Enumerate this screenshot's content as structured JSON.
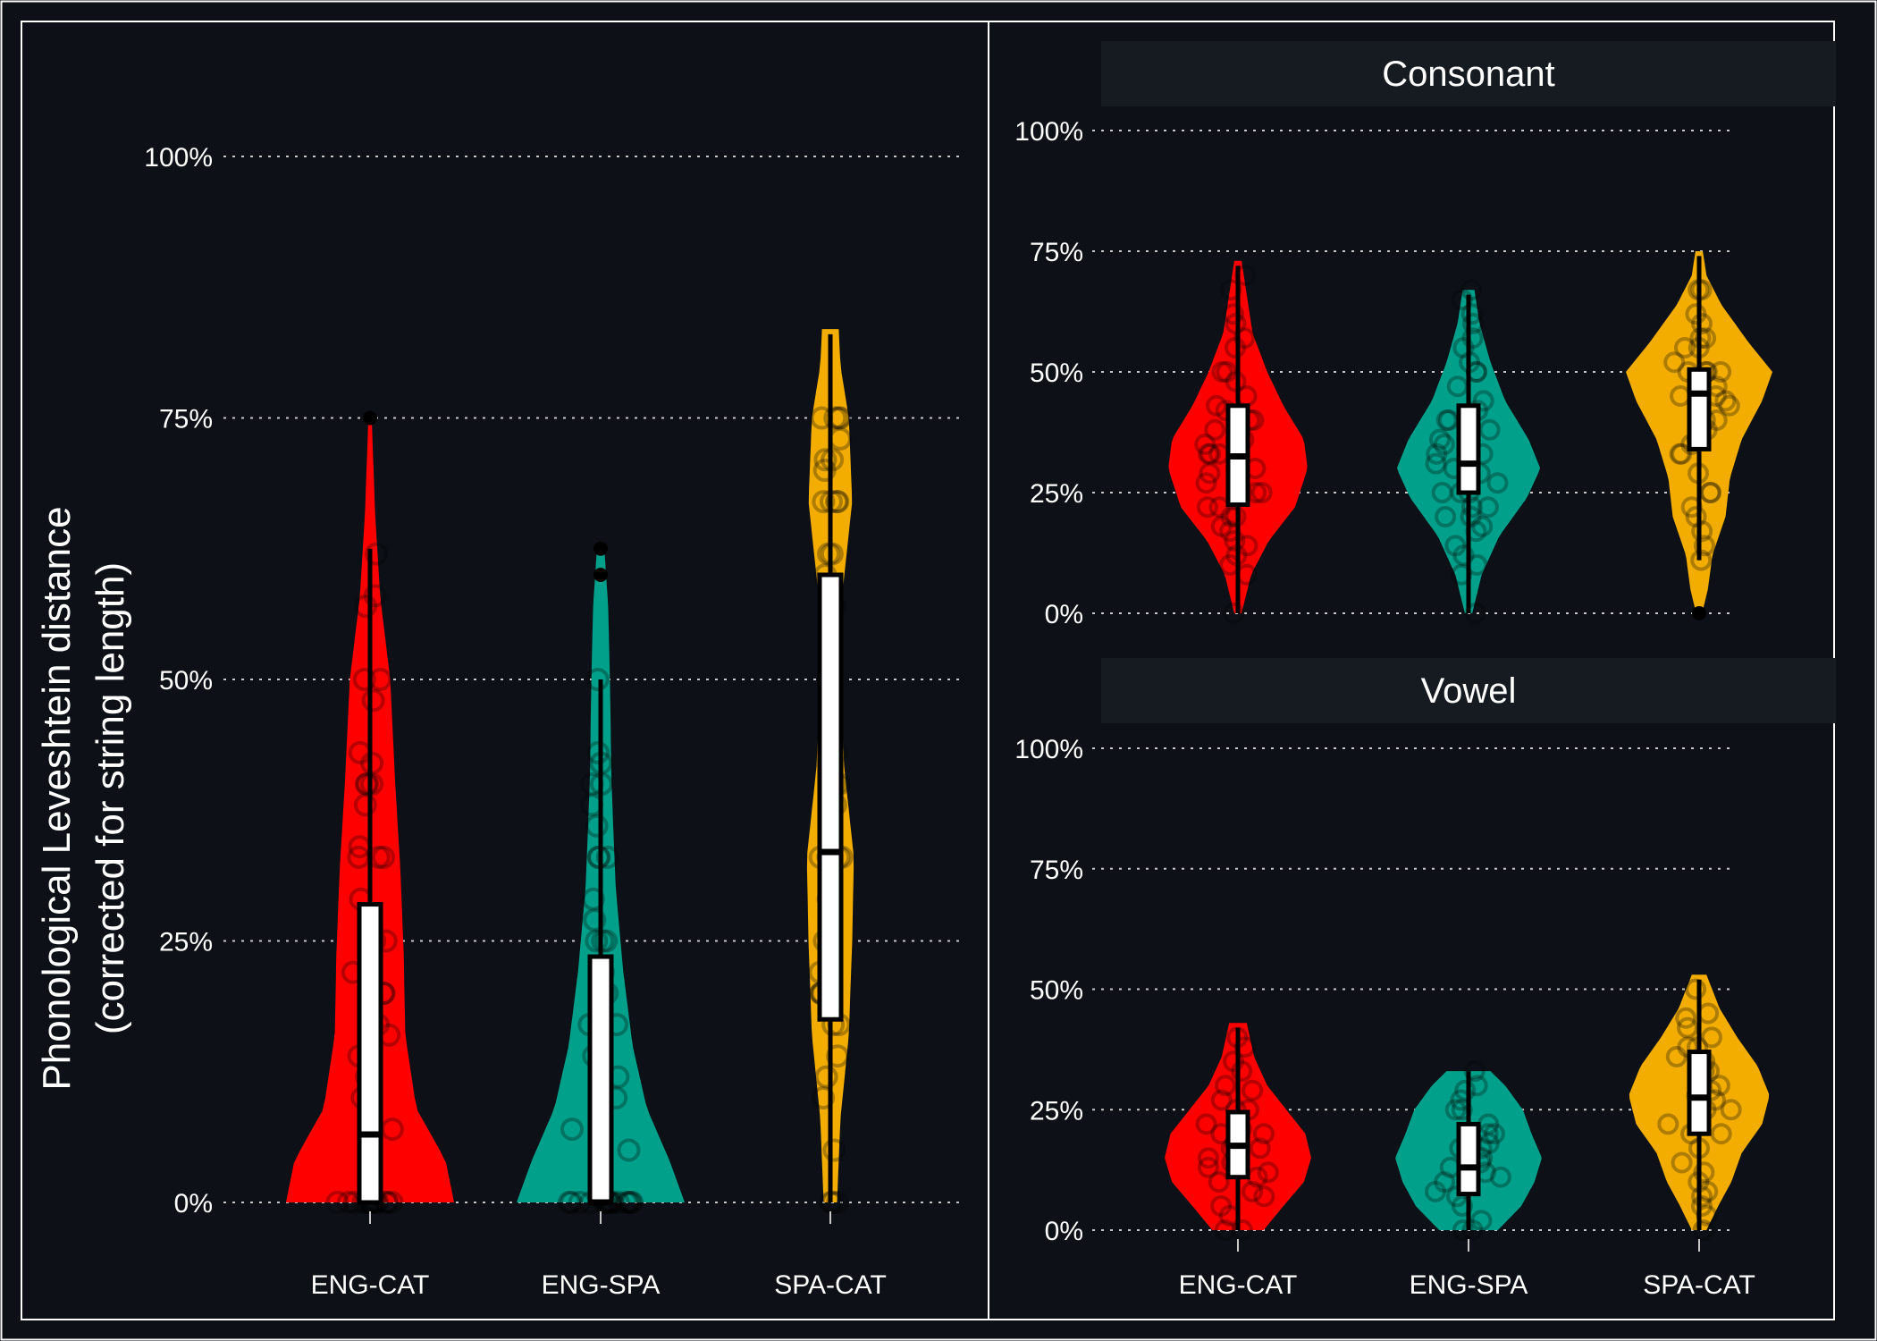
{
  "colors": {
    "background": "#0d1117",
    "panel_border": "#ffffff",
    "strip_fill": "#161b22",
    "grid": "#c8c8c8",
    "text": "#ffffff",
    "box_fill": "#ffffff",
    "box_stroke": "#000000"
  },
  "chart_data": [
    {
      "type": "violin",
      "panel": "left",
      "title": "",
      "ylabel_line1": "Phonological Leveshtein distance",
      "ylabel_line2": "(corrected for string length)",
      "ylim": [
        0,
        100
      ],
      "yticks": [
        0,
        25,
        50,
        75,
        100
      ],
      "ytick_labels": [
        "0%",
        "25%",
        "50%",
        "75%",
        "100%"
      ],
      "grid": true,
      "categories": [
        "ENG-CAT",
        "ENG-SPA",
        "SPA-CAT"
      ],
      "series": [
        {
          "category": "ENG-CAT",
          "color": "#ff0000",
          "violin_max": 75,
          "density_profile": [
            [
              0,
              1.0
            ],
            [
              4,
              0.9
            ],
            [
              9,
              0.55
            ],
            [
              16,
              0.42
            ],
            [
              24,
              0.4
            ],
            [
              32,
              0.36
            ],
            [
              40,
              0.3
            ],
            [
              50,
              0.24
            ],
            [
              58,
              0.12
            ],
            [
              66,
              0.06
            ],
            [
              75,
              0.02
            ]
          ],
          "box": {
            "q1": 0,
            "median": 6.5,
            "q3": 28.5,
            "whisker_low": 0,
            "whisker_high": 62.5
          },
          "outliers": [
            75
          ],
          "points": [
            0,
            0,
            0,
            0,
            0,
            0,
            0,
            0,
            0,
            0,
            0,
            0,
            0,
            0,
            7,
            10,
            12,
            14,
            16,
            17,
            20,
            20,
            22,
            25,
            25,
            29,
            33,
            33,
            33,
            34,
            38,
            40,
            40,
            40,
            42,
            43,
            48,
            50,
            50,
            57,
            58,
            62
          ]
        },
        {
          "category": "ENG-SPA",
          "color": "#00a08a",
          "violin_max": 63,
          "density_profile": [
            [
              0,
              1.0
            ],
            [
              4,
              0.82
            ],
            [
              9,
              0.55
            ],
            [
              15,
              0.38
            ],
            [
              22,
              0.27
            ],
            [
              30,
              0.18
            ],
            [
              40,
              0.13
            ],
            [
              50,
              0.11
            ],
            [
              57,
              0.09
            ],
            [
              63,
              0.04
            ]
          ],
          "box": {
            "q1": 0,
            "median": 0,
            "q3": 23.5,
            "whisker_low": 0,
            "whisker_high": 50
          },
          "outliers": [
            60,
            62.5
          ],
          "points": [
            0,
            0,
            0,
            0,
            0,
            0,
            0,
            0,
            0,
            0,
            0,
            0,
            0,
            0,
            0,
            0,
            5,
            7,
            10,
            12,
            14,
            17,
            17,
            20,
            20,
            22,
            25,
            25,
            25,
            27,
            29,
            33,
            33,
            33,
            36,
            38,
            40,
            40,
            42,
            43,
            50
          ]
        },
        {
          "category": "SPA-CAT",
          "color": "#f2ad00",
          "violin_max": 83.5,
          "density_profile": [
            [
              0,
              0.08
            ],
            [
              8,
              0.12
            ],
            [
              16,
              0.22
            ],
            [
              25,
              0.26
            ],
            [
              33,
              0.28
            ],
            [
              42,
              0.16
            ],
            [
              50,
              0.14
            ],
            [
              58,
              0.14
            ],
            [
              67,
              0.26
            ],
            [
              75,
              0.22
            ],
            [
              80,
              0.12
            ],
            [
              83.5,
              0.1
            ]
          ],
          "box": {
            "q1": 17.5,
            "median": 33.5,
            "q3": 60,
            "whisker_low": 0,
            "whisker_high": 83
          },
          "outliers": [],
          "points": [
            0,
            0,
            0,
            5,
            10,
            12,
            14,
            17,
            17,
            20,
            20,
            20,
            22,
            25,
            25,
            25,
            29,
            33,
            33,
            33,
            33,
            38,
            40,
            40,
            43,
            50,
            50,
            50,
            55,
            57,
            60,
            62,
            62,
            67,
            67,
            67,
            67,
            70,
            71,
            71,
            73,
            75,
            75,
            75,
            75
          ]
        }
      ]
    },
    {
      "type": "violin",
      "panel": "right-top",
      "title": "Consonant",
      "ylim": [
        0,
        100
      ],
      "yticks": [
        0,
        25,
        50,
        75,
        100
      ],
      "ytick_labels": [
        "0%",
        "25%",
        "50%",
        "75%",
        "100%"
      ],
      "grid": true,
      "categories": [
        "ENG-CAT",
        "ENG-SPA",
        "SPA-CAT"
      ],
      "series": [
        {
          "category": "ENG-CAT",
          "color": "#ff0000",
          "violin_max": 73,
          "density_profile": [
            [
              0,
              0.05
            ],
            [
              8,
              0.18
            ],
            [
              15,
              0.42
            ],
            [
              22,
              0.78
            ],
            [
              30,
              0.95
            ],
            [
              36,
              0.9
            ],
            [
              43,
              0.62
            ],
            [
              50,
              0.4
            ],
            [
              58,
              0.2
            ],
            [
              66,
              0.12
            ],
            [
              73,
              0.05
            ]
          ],
          "box": {
            "q1": 22.5,
            "median": 32.5,
            "q3": 43,
            "whisker_low": 0,
            "whisker_high": 72
          },
          "outliers": [],
          "points": [
            0,
            8,
            10,
            12,
            14,
            15,
            17,
            18,
            20,
            20,
            22,
            22,
            25,
            25,
            25,
            27,
            29,
            30,
            30,
            33,
            33,
            33,
            35,
            36,
            38,
            40,
            40,
            42,
            43,
            45,
            48,
            50,
            50,
            55,
            57,
            60,
            62,
            67,
            70
          ]
        },
        {
          "category": "ENG-SPA",
          "color": "#00a08a",
          "violin_max": 67,
          "density_profile": [
            [
              0,
              0.05
            ],
            [
              8,
              0.18
            ],
            [
              16,
              0.42
            ],
            [
              24,
              0.8
            ],
            [
              30,
              0.98
            ],
            [
              36,
              0.82
            ],
            [
              44,
              0.5
            ],
            [
              52,
              0.3
            ],
            [
              60,
              0.15
            ],
            [
              67,
              0.08
            ]
          ],
          "box": {
            "q1": 25,
            "median": 31,
            "q3": 43,
            "whisker_low": 0,
            "whisker_high": 66
          },
          "outliers": [],
          "points": [
            0,
            8,
            10,
            12,
            14,
            17,
            18,
            20,
            20,
            22,
            22,
            25,
            25,
            25,
            27,
            29,
            29,
            30,
            31,
            33,
            33,
            35,
            36,
            38,
            40,
            40,
            42,
            44,
            47,
            50,
            50,
            52,
            55,
            57,
            60,
            62,
            65,
            67
          ]
        },
        {
          "category": "SPA-CAT",
          "color": "#f2ad00",
          "violin_max": 75,
          "density_profile": [
            [
              0,
              0.04
            ],
            [
              5,
              0.12
            ],
            [
              12,
              0.18
            ],
            [
              20,
              0.36
            ],
            [
              28,
              0.42
            ],
            [
              36,
              0.58
            ],
            [
              44,
              0.86
            ],
            [
              50,
              1.0
            ],
            [
              56,
              0.68
            ],
            [
              64,
              0.3
            ],
            [
              70,
              0.1
            ],
            [
              75,
              0.05
            ]
          ],
          "box": {
            "q1": 34,
            "median": 45.5,
            "q3": 50.5,
            "whisker_low": 11,
            "whisker_high": 74
          },
          "outliers": [
            0
          ],
          "points": [
            11,
            14,
            17,
            20,
            22,
            25,
            25,
            29,
            33,
            33,
            35,
            36,
            38,
            40,
            40,
            43,
            44,
            45,
            45,
            47,
            50,
            50,
            50,
            50,
            52,
            55,
            55,
            57,
            57,
            60,
            62,
            67,
            67
          ]
        }
      ]
    },
    {
      "type": "violin",
      "panel": "right-bottom",
      "title": "Vowel",
      "ylim": [
        0,
        100
      ],
      "yticks": [
        0,
        25,
        50,
        75,
        100
      ],
      "ytick_labels": [
        "0%",
        "25%",
        "50%",
        "75%",
        "100%"
      ],
      "grid": true,
      "categories": [
        "ENG-CAT",
        "ENG-SPA",
        "SPA-CAT"
      ],
      "series": [
        {
          "category": "ENG-CAT",
          "color": "#ff0000",
          "violin_max": 43,
          "density_profile": [
            [
              0,
              0.35
            ],
            [
              5,
              0.62
            ],
            [
              10,
              0.9
            ],
            [
              15,
              1.0
            ],
            [
              20,
              0.92
            ],
            [
              25,
              0.66
            ],
            [
              30,
              0.4
            ],
            [
              36,
              0.22
            ],
            [
              43,
              0.12
            ]
          ],
          "box": {
            "q1": 11,
            "median": 17.5,
            "q3": 24.5,
            "whisker_low": 0,
            "whisker_high": 42
          },
          "outliers": [],
          "points": [
            0,
            0,
            3,
            5,
            7,
            8,
            10,
            11,
            12,
            13,
            14,
            15,
            17,
            17,
            18,
            20,
            20,
            21,
            22,
            25,
            25,
            27,
            29,
            30,
            33,
            35,
            38,
            40
          ]
        },
        {
          "category": "ENG-SPA",
          "color": "#00a08a",
          "violin_max": 33,
          "density_profile": [
            [
              0,
              0.4
            ],
            [
              5,
              0.72
            ],
            [
              10,
              0.9
            ],
            [
              15,
              1.0
            ],
            [
              20,
              0.86
            ],
            [
              25,
              0.74
            ],
            [
              30,
              0.5
            ],
            [
              33,
              0.3
            ]
          ],
          "box": {
            "q1": 7.5,
            "median": 13,
            "q3": 22,
            "whisker_low": 0,
            "whisker_high": 33
          },
          "outliers": [],
          "points": [
            0,
            0,
            2,
            5,
            7,
            8,
            10,
            11,
            12,
            13,
            14,
            15,
            17,
            17,
            18,
            20,
            20,
            22,
            25,
            25,
            27,
            29,
            30,
            33
          ]
        },
        {
          "category": "SPA-CAT",
          "color": "#f2ad00",
          "violin_max": 53,
          "density_profile": [
            [
              0,
              0.1
            ],
            [
              5,
              0.26
            ],
            [
              10,
              0.44
            ],
            [
              16,
              0.58
            ],
            [
              22,
              0.86
            ],
            [
              28,
              0.96
            ],
            [
              34,
              0.8
            ],
            [
              40,
              0.52
            ],
            [
              46,
              0.28
            ],
            [
              53,
              0.1
            ]
          ],
          "box": {
            "q1": 20,
            "median": 27.5,
            "q3": 37,
            "whisker_low": 0,
            "whisker_high": 52
          },
          "outliers": [],
          "points": [
            0,
            3,
            5,
            7,
            8,
            10,
            12,
            14,
            17,
            20,
            20,
            22,
            25,
            25,
            27,
            28,
            29,
            30,
            33,
            33,
            35,
            36,
            38,
            38,
            40,
            42,
            44,
            45,
            50
          ]
        }
      ]
    }
  ]
}
